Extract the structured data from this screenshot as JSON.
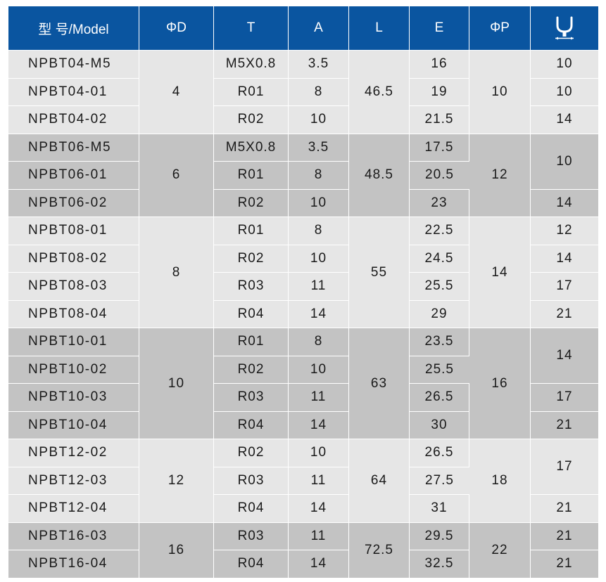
{
  "header": {
    "model": "型 号/Model",
    "d": "ΦD",
    "t": "T",
    "a": "A",
    "l": "L",
    "e": "E",
    "p": "ΦP",
    "wrench_icon": "wrench-size-icon"
  },
  "groups": [
    {
      "d": "4",
      "l": "46.5",
      "p": "10",
      "rows": [
        {
          "model": "NPBT04-M5",
          "t": "M5X0.8",
          "a": "3.5",
          "e": "16",
          "w": "10"
        },
        {
          "model": "NPBT04-01",
          "t": "R01",
          "a": "8",
          "e": "19",
          "w": "10"
        },
        {
          "model": "NPBT04-02",
          "t": "R02",
          "a": "10",
          "e": "21.5",
          "w": "14"
        }
      ]
    },
    {
      "d": "6",
      "l": "48.5",
      "p": "12",
      "rows": [
        {
          "model": "NPBT06-M5",
          "t": "M5X0.8",
          "a": "3.5",
          "e": "17.5",
          "w": "10"
        },
        {
          "model": "NPBT06-01",
          "t": "R01",
          "a": "8",
          "e": "20.5"
        },
        {
          "model": "NPBT06-02",
          "t": "R02",
          "a": "10",
          "e": "23",
          "w": "14"
        }
      ]
    },
    {
      "d": "8",
      "l": "55",
      "p": "14",
      "rows": [
        {
          "model": "NPBT08-01",
          "t": "R01",
          "a": "8",
          "e": "22.5",
          "w": "12"
        },
        {
          "model": "NPBT08-02",
          "t": "R02",
          "a": "10",
          "e": "24.5",
          "w": "14"
        },
        {
          "model": "NPBT08-03",
          "t": "R03",
          "a": "11",
          "e": "25.5",
          "w": "17"
        },
        {
          "model": "NPBT08-04",
          "t": "R04",
          "a": "14",
          "e": "29",
          "w": "21"
        }
      ]
    },
    {
      "d": "10",
      "l": "63",
      "p": "16",
      "rows": [
        {
          "model": "NPBT10-01",
          "t": "R01",
          "a": "8",
          "e": "23.5",
          "w": "14"
        },
        {
          "model": "NPBT10-02",
          "t": "R02",
          "a": "10",
          "e": "25.5"
        },
        {
          "model": "NPBT10-03",
          "t": "R03",
          "a": "11",
          "e": "26.5",
          "w": "17"
        },
        {
          "model": "NPBT10-04",
          "t": "R04",
          "a": "14",
          "e": "30",
          "w": "21"
        }
      ]
    },
    {
      "d": "12",
      "l": "64",
      "p": "18",
      "rows": [
        {
          "model": "NPBT12-02",
          "t": "R02",
          "a": "10",
          "e": "26.5",
          "w": "17"
        },
        {
          "model": "NPBT12-03",
          "t": "R03",
          "a": "11",
          "e": "27.5"
        },
        {
          "model": "NPBT12-04",
          "t": "R04",
          "a": "14",
          "e": "31",
          "w": "21"
        }
      ]
    },
    {
      "d": "16",
      "l": "72.5",
      "p": "22",
      "rows": [
        {
          "model": "NPBT16-03",
          "t": "R03",
          "a": "11",
          "e": "29.5",
          "w": "21"
        },
        {
          "model": "NPBT16-04",
          "t": "R04",
          "a": "14",
          "e": "32.5",
          "w": "21"
        }
      ]
    }
  ]
}
